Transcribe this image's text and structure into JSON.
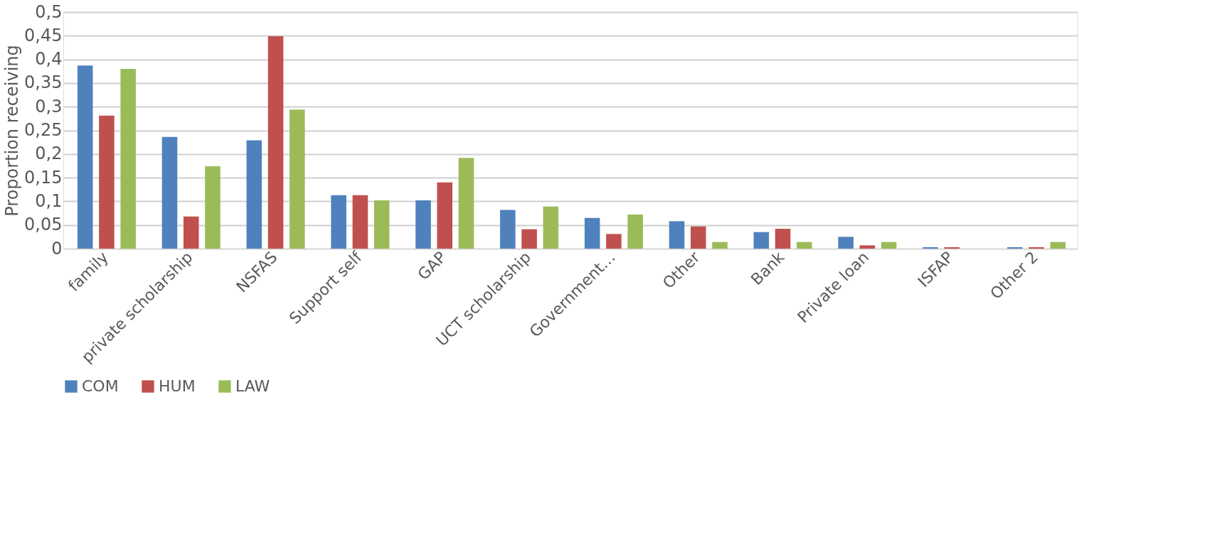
{
  "chart_data": {
    "type": "bar",
    "ylabel": "Proportion receiving",
    "categories": [
      "family",
      "private scholarship",
      "NSFAS",
      "Support self",
      "GAP",
      "UCT scholarship",
      "Government…",
      "Other",
      "Bank",
      "Private loan",
      "ISFAP",
      "Other 2"
    ],
    "series": [
      {
        "name": "COM",
        "color": "#4f81bd",
        "values": [
          0.387,
          0.236,
          0.229,
          0.113,
          0.102,
          0.082,
          0.065,
          0.058,
          0.035,
          0.025,
          0.003,
          0.003
        ]
      },
      {
        "name": "HUM",
        "color": "#c0504d",
        "values": [
          0.281,
          0.068,
          0.449,
          0.113,
          0.14,
          0.041,
          0.031,
          0.047,
          0.042,
          0.007,
          0.003,
          0.003
        ]
      },
      {
        "name": "LAW",
        "color": "#9bbb59",
        "values": [
          0.38,
          0.174,
          0.294,
          0.102,
          0.192,
          0.089,
          0.072,
          0.014,
          0.014,
          0.014,
          0,
          0.014
        ]
      }
    ],
    "ylim": [
      0,
      0.5
    ],
    "yticks": [
      {
        "value": 0,
        "label": "0"
      },
      {
        "value": 0.05,
        "label": "0,05"
      },
      {
        "value": 0.1,
        "label": "0,1"
      },
      {
        "value": 0.15,
        "label": "0,15"
      },
      {
        "value": 0.2,
        "label": "0,2"
      },
      {
        "value": 0.25,
        "label": "0,25"
      },
      {
        "value": 0.3,
        "label": "0,3"
      },
      {
        "value": 0.35,
        "label": "0,35"
      },
      {
        "value": 0.4,
        "label": "0,4"
      },
      {
        "value": 0.45,
        "label": "0,45"
      },
      {
        "value": 0.5,
        "label": "0,5"
      }
    ],
    "grid": "y",
    "legend": "bottom"
  }
}
